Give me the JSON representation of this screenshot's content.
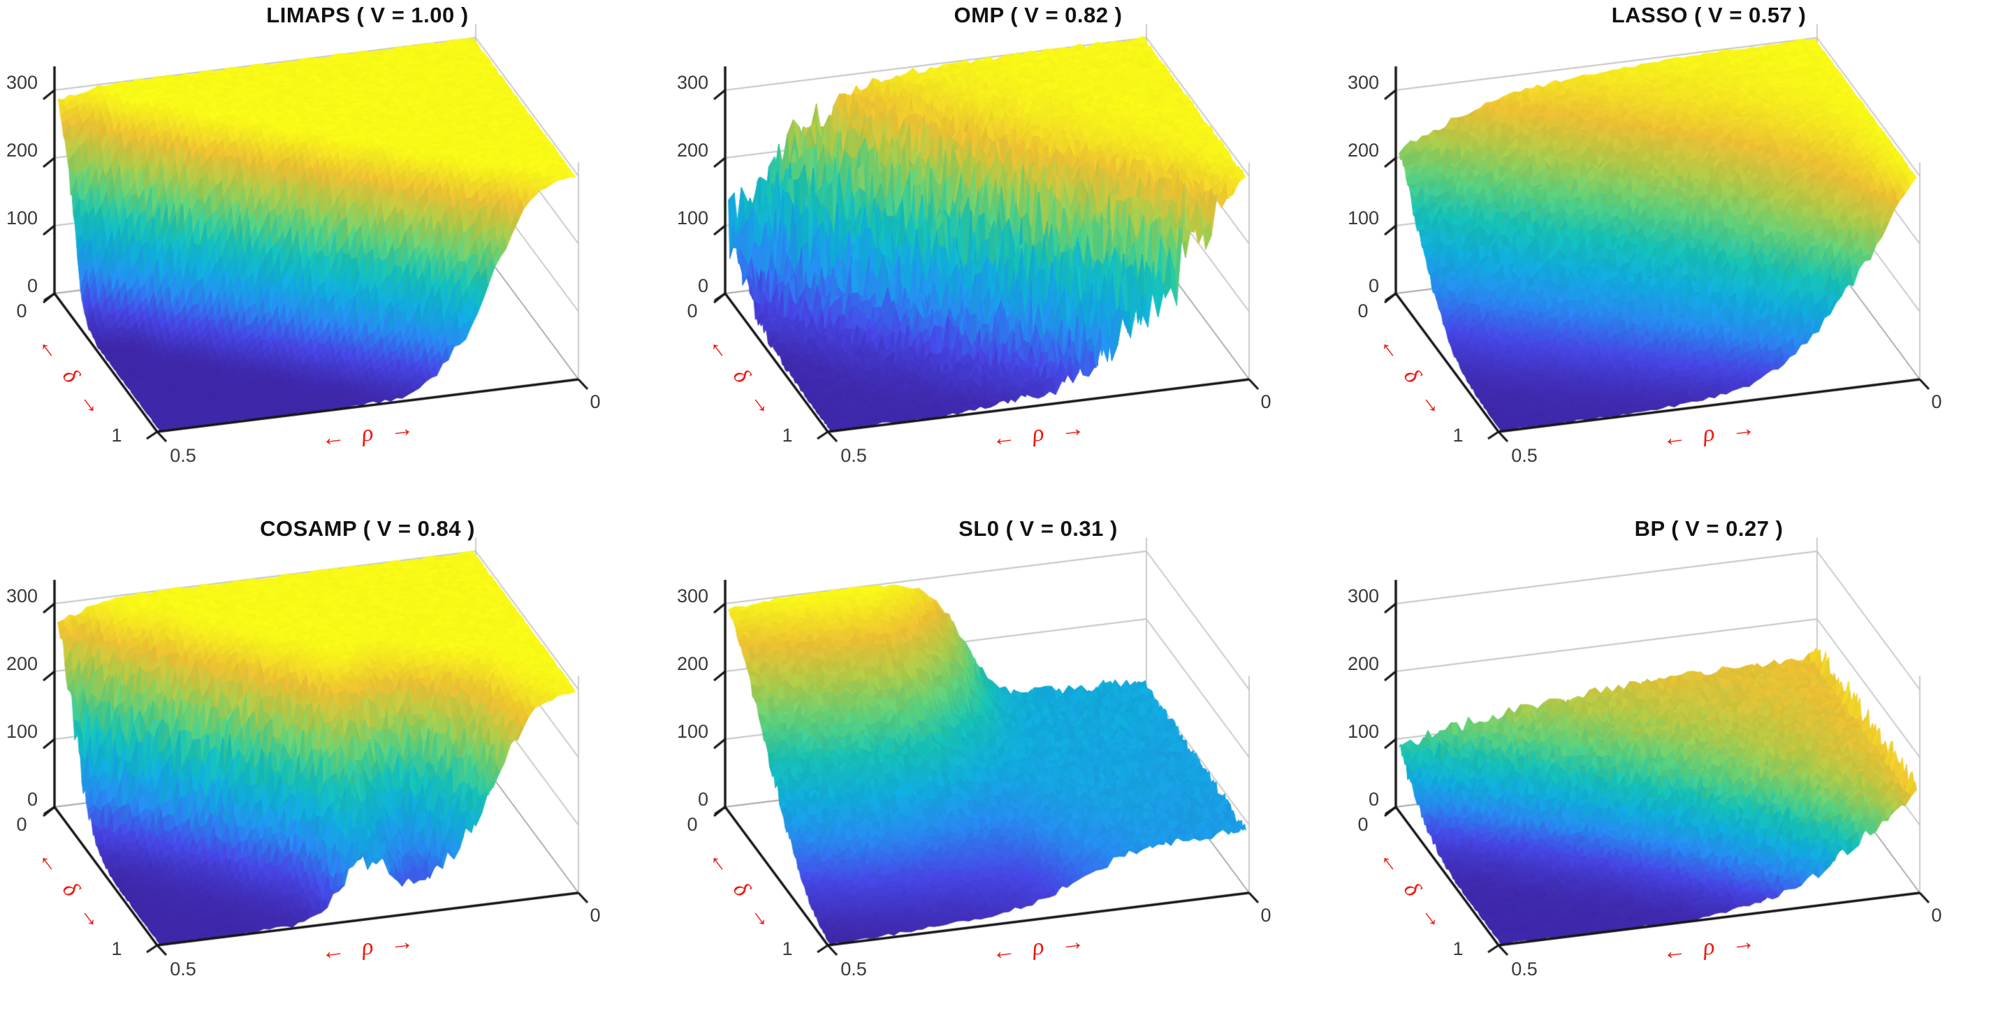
{
  "figure": {
    "background": "#ffffff",
    "rows": 2,
    "cols": 3,
    "description": "Six 3D phase-transition surface plots (number of successful recoveries vs delta and rho) for sparse recovery algorithms"
  },
  "colors": {
    "label_red": "#f01810",
    "axis_black": "#161616",
    "grid_gray": "#c6c6c6",
    "grid_dark": "#a5a5a5",
    "tick_text": "#3a3a3a",
    "title_text": "#111111",
    "background": "#ffffff",
    "colormap": "parula"
  },
  "axes": {
    "z_tick_labels": [
      "0",
      "100",
      "200",
      "300"
    ],
    "z_tick_values": [
      0,
      100,
      200,
      300
    ],
    "delta_tick_labels": [
      "0",
      "1"
    ],
    "rho_tick_labels": [
      "0.5",
      "0"
    ],
    "delta_axis_label": "← δ →",
    "rho_axis_label": "← ρ →",
    "zlim": [
      0,
      300
    ],
    "rho_range": [
      0.5,
      0
    ],
    "delta_range": [
      0,
      1
    ]
  },
  "chart_data": [
    {
      "type": "surface",
      "algorithm": "LIMAPS",
      "V": 1.0,
      "title": "LIMAPS ( V = 1.00 )",
      "xlabel": "← ρ →",
      "ylabel": "← δ →",
      "zlim": [
        0,
        300
      ],
      "z_ticks": [
        0,
        100,
        200,
        300
      ],
      "rho": [
        0.5,
        0.4375,
        0.375,
        0.3125,
        0.25,
        0.1875,
        0.125,
        0.0625,
        0
      ],
      "delta": [
        0,
        0.125,
        0.25,
        0.375,
        0.5,
        0.625,
        0.75,
        0.875,
        1
      ],
      "z_grid": [
        [
          287,
          299,
          300,
          300,
          300,
          300,
          300,
          300,
          300
        ],
        [
          180,
          292,
          300,
          300,
          300,
          300,
          300,
          300,
          300
        ],
        [
          28,
          212,
          296,
          300,
          300,
          300,
          300,
          300,
          300
        ],
        [
          2,
          45,
          240,
          297,
          300,
          300,
          300,
          300,
          300
        ],
        [
          0,
          4,
          62,
          248,
          298,
          300,
          300,
          300,
          300
        ],
        [
          0,
          0,
          7,
          72,
          252,
          299,
          300,
          300,
          300
        ],
        [
          0,
          0,
          0,
          9,
          82,
          256,
          299,
          300,
          300
        ],
        [
          0,
          0,
          0,
          1,
          13,
          92,
          260,
          299,
          300
        ],
        [
          0,
          0,
          0,
          0,
          2,
          16,
          102,
          265,
          300
        ]
      ],
      "render": {
        "seed": 11,
        "cmax": 300,
        "noise_base": 2,
        "noise_trans": 9,
        "edge_noise": 0
      }
    },
    {
      "type": "surface",
      "algorithm": "OMP",
      "V": 0.82,
      "title": "OMP ( V = 0.82 )",
      "xlabel": "← ρ →",
      "ylabel": "← δ →",
      "zlim": [
        0,
        300
      ],
      "z_ticks": [
        0,
        100,
        200,
        300
      ],
      "rho": [
        0.5,
        0.4375,
        0.375,
        0.3125,
        0.25,
        0.1875,
        0.125,
        0.0625,
        0
      ],
      "delta": [
        0,
        0.125,
        0.25,
        0.375,
        0.5,
        0.625,
        0.75,
        0.875,
        1
      ],
      "z_grid": [
        [
          93,
          183,
          254,
          285,
          296,
          299,
          300,
          300,
          300
        ],
        [
          60,
          140,
          220,
          268,
          290,
          297,
          300,
          300,
          300
        ],
        [
          30,
          90,
          170,
          240,
          280,
          294,
          299,
          300,
          300
        ],
        [
          14,
          48,
          110,
          195,
          258,
          287,
          297,
          300,
          300
        ],
        [
          6,
          22,
          60,
          135,
          220,
          272,
          293,
          299,
          300
        ],
        [
          3,
          10,
          28,
          75,
          155,
          235,
          280,
          296,
          300
        ],
        [
          1,
          4,
          12,
          35,
          90,
          175,
          250,
          288,
          300
        ],
        [
          0,
          2,
          5,
          15,
          45,
          105,
          195,
          265,
          300
        ],
        [
          0,
          1,
          2,
          6,
          18,
          55,
          120,
          210,
          300
        ]
      ],
      "render": {
        "seed": 22,
        "cmax": 302,
        "noise_base": 3,
        "noise_trans": 55,
        "edge_noise": 0
      }
    },
    {
      "type": "surface",
      "algorithm": "LASSO",
      "V": 0.57,
      "title": "LASSO ( V = 0.57 )",
      "xlabel": "← ρ →",
      "ylabel": "← δ →",
      "zlim": [
        0,
        300
      ],
      "z_ticks": [
        0,
        100,
        200,
        300
      ],
      "rho": [
        0.5,
        0.4375,
        0.375,
        0.3125,
        0.25,
        0.1875,
        0.125,
        0.0625,
        0
      ],
      "delta": [
        0,
        0.125,
        0.25,
        0.375,
        0.5,
        0.625,
        0.75,
        0.875,
        1
      ],
      "z_grid": [
        [
          210,
          245,
          269,
          283,
          290,
          295,
          298,
          299,
          300
        ],
        [
          158,
          200,
          240,
          262,
          278,
          288,
          294,
          298,
          300
        ],
        [
          105,
          150,
          195,
          235,
          262,
          280,
          290,
          296,
          300
        ],
        [
          60,
          100,
          145,
          190,
          230,
          260,
          280,
          293,
          300
        ],
        [
          25,
          55,
          95,
          140,
          190,
          230,
          265,
          287,
          300
        ],
        [
          10,
          25,
          50,
          90,
          140,
          195,
          240,
          275,
          300
        ],
        [
          3,
          8,
          20,
          45,
          90,
          150,
          215,
          262,
          300
        ],
        [
          1,
          3,
          6,
          15,
          40,
          90,
          165,
          240,
          300
        ],
        [
          0,
          1,
          2,
          4,
          10,
          30,
          85,
          185,
          300
        ]
      ],
      "render": {
        "seed": 33,
        "cmax": 300,
        "noise_base": 2,
        "noise_trans": 7,
        "edge_noise": 0
      }
    },
    {
      "type": "surface",
      "algorithm": "COSAMP",
      "V": 0.84,
      "title": "COSAMP ( V = 0.84 )",
      "xlabel": "← ρ →",
      "ylabel": "← δ →",
      "zlim": [
        0,
        300
      ],
      "z_ticks": [
        0,
        100,
        200,
        300
      ],
      "rho": [
        0.5,
        0.4375,
        0.375,
        0.3125,
        0.25,
        0.1875,
        0.125,
        0.0625,
        0
      ],
      "delta": [
        0,
        0.125,
        0.25,
        0.375,
        0.5,
        0.625,
        0.75,
        0.875,
        1
      ],
      "z_grid": [
        [
          272,
          296,
          300,
          300,
          300,
          300,
          300,
          300,
          300
        ],
        [
          185,
          278,
          298,
          300,
          300,
          300,
          300,
          300,
          300
        ],
        [
          85,
          205,
          288,
          299,
          300,
          300,
          300,
          300,
          300
        ],
        [
          22,
          95,
          235,
          294,
          300,
          300,
          300,
          300,
          300
        ],
        [
          5,
          28,
          115,
          252,
          296,
          298,
          300,
          300,
          300
        ],
        [
          1,
          9,
          42,
          155,
          272,
          262,
          292,
          300,
          300
        ],
        [
          0,
          3,
          15,
          62,
          185,
          150,
          225,
          292,
          300
        ],
        [
          0,
          1,
          5,
          28,
          125,
          75,
          165,
          278,
          300
        ],
        [
          0,
          0,
          2,
          14,
          92,
          42,
          125,
          262,
          300
        ]
      ],
      "render": {
        "seed": 44,
        "cmax": 300,
        "noise_base": 2,
        "noise_trans": 22,
        "edge_noise": 0
      }
    },
    {
      "type": "surface",
      "algorithm": "SL0",
      "V": 0.31,
      "title": "SL0 ( V = 0.31 )",
      "xlabel": "← ρ →",
      "ylabel": "← δ →",
      "zlim": [
        0,
        300
      ],
      "z_ticks": [
        0,
        100,
        200,
        300
      ],
      "rho": [
        0.5,
        0.4375,
        0.375,
        0.3125,
        0.25,
        0.1875,
        0.125,
        0.0625,
        0
      ],
      "delta": [
        0,
        0.125,
        0.25,
        0.375,
        0.5,
        0.625,
        0.75,
        0.875,
        1
      ],
      "z_grid": [
        [
          292,
          298,
          300,
          298,
          268,
          140,
          112,
          110,
          108
        ],
        [
          258,
          270,
          277,
          272,
          225,
          128,
          110,
          108,
          106
        ],
        [
          212,
          226,
          232,
          226,
          175,
          117,
          108,
          106,
          104
        ],
        [
          162,
          176,
          182,
          174,
          132,
          110,
          105,
          104,
          102
        ],
        [
          112,
          126,
          131,
          125,
          105,
          103,
          102,
          101,
          100
        ],
        [
          66,
          81,
          86,
          83,
          78,
          96,
          100,
          99,
          98
        ],
        [
          30,
          43,
          49,
          51,
          57,
          86,
          96,
          97,
          96
        ],
        [
          9,
          16,
          21,
          26,
          36,
          71,
          90,
          94,
          94
        ],
        [
          0,
          3,
          7,
          13,
          26,
          60,
          86,
          92,
          92
        ]
      ],
      "render": {
        "seed": 55,
        "cmax": 300,
        "noise_base": 2,
        "noise_trans": 8,
        "edge_noise": 0
      }
    },
    {
      "type": "surface",
      "algorithm": "BP",
      "V": 0.27,
      "title": "BP ( V = 0.27 )",
      "xlabel": "← ρ →",
      "ylabel": "← δ →",
      "zlim": [
        0,
        300
      ],
      "z_ticks": [
        0,
        100,
        200,
        300
      ],
      "rho": [
        0.5,
        0.4375,
        0.375,
        0.3125,
        0.25,
        0.1875,
        0.125,
        0.0625,
        0
      ],
      "delta": [
        0,
        0.125,
        0.25,
        0.375,
        0.5,
        0.625,
        0.75,
        0.875,
        1
      ],
      "z_grid": [
        [
          88,
          105,
          118,
          128,
          135,
          140,
          142,
          144,
          146
        ],
        [
          55,
          80,
          100,
          115,
          127,
          135,
          140,
          143,
          146
        ],
        [
          28,
          50,
          75,
          98,
          115,
          128,
          136,
          142,
          146
        ],
        [
          12,
          25,
          48,
          75,
          100,
          118,
          130,
          140,
          146
        ],
        [
          4,
          10,
          25,
          50,
          78,
          105,
          124,
          137,
          146
        ],
        [
          1,
          4,
          10,
          25,
          52,
          85,
          112,
          132,
          146
        ],
        [
          0,
          1,
          4,
          10,
          28,
          60,
          95,
          125,
          146
        ],
        [
          0,
          0,
          1,
          4,
          12,
          35,
          72,
          112,
          146
        ],
        [
          0,
          0,
          0,
          1,
          5,
          16,
          45,
          95,
          146
        ]
      ],
      "render": {
        "seed": 66,
        "cmax": 168,
        "noise_base": 2.5,
        "noise_trans": 9,
        "edge_noise": 30
      }
    }
  ]
}
